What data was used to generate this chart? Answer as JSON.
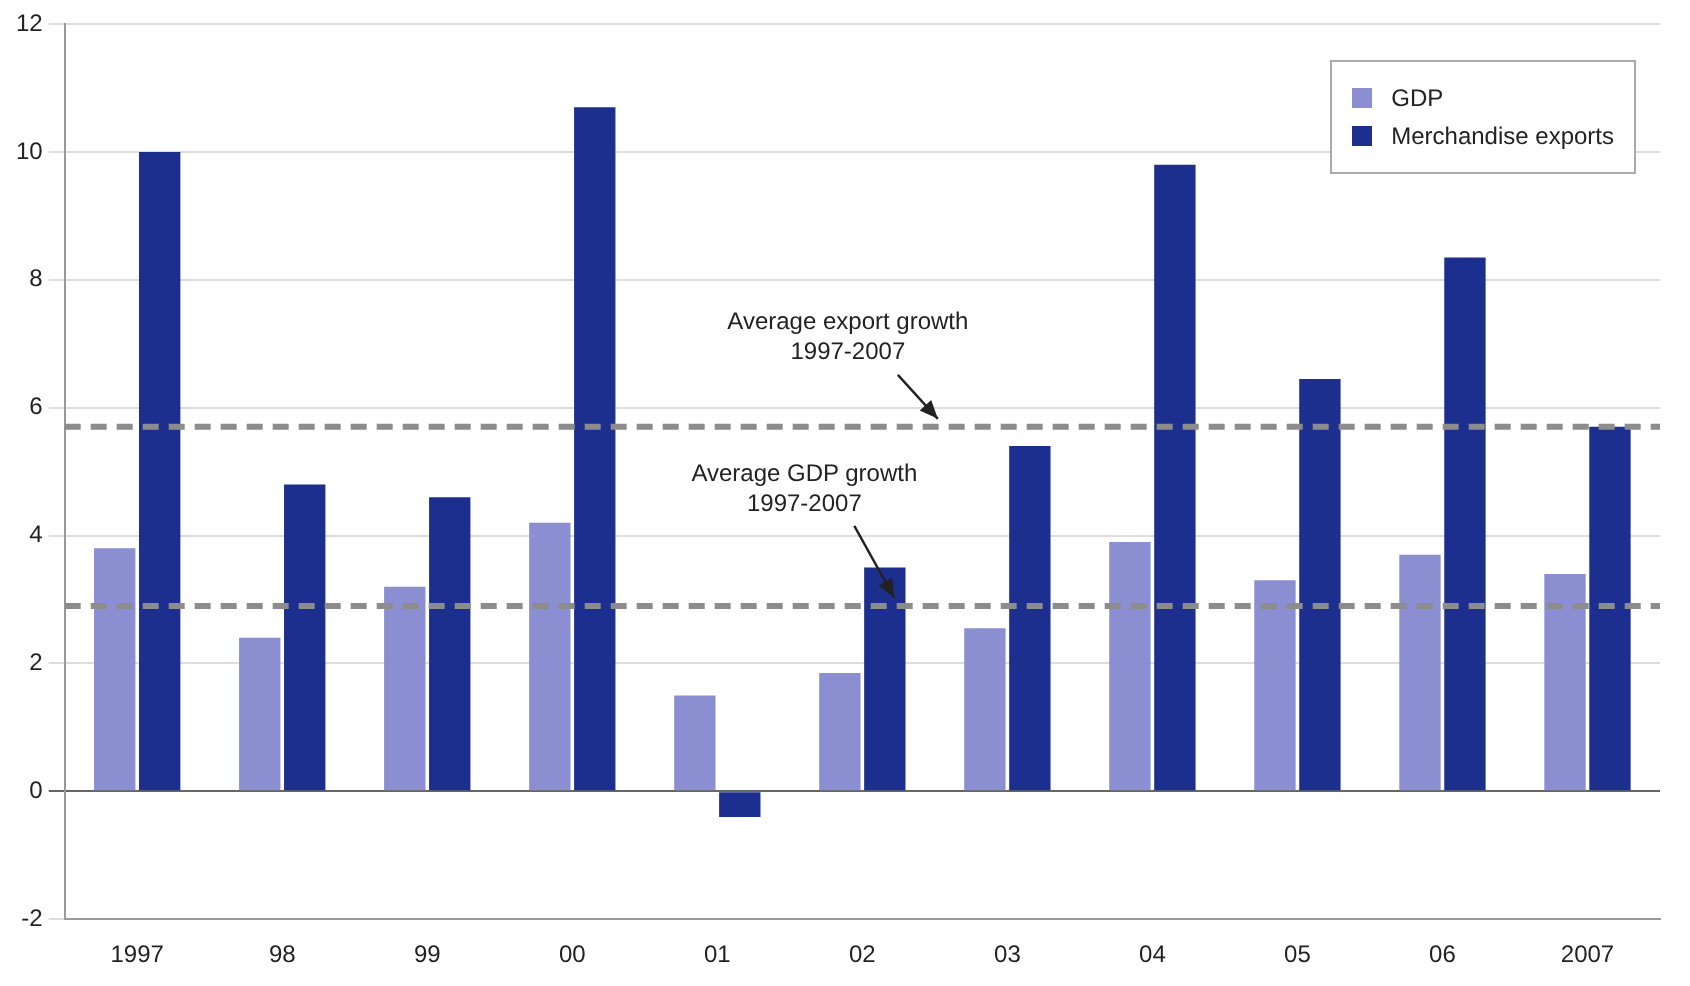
{
  "chart_data": {
    "type": "bar",
    "categories": [
      "1997",
      "98",
      "99",
      "00",
      "01",
      "02",
      "03",
      "04",
      "05",
      "06",
      "2007"
    ],
    "series": [
      {
        "name": "GDP",
        "color": "#8b8ed0",
        "values": [
          3.8,
          2.4,
          3.2,
          4.2,
          1.5,
          1.85,
          2.55,
          3.9,
          3.3,
          3.7,
          3.4
        ]
      },
      {
        "name": "Merchandise exports",
        "color": "#1c2f8e",
        "values": [
          10.0,
          4.8,
          4.6,
          10.7,
          -0.4,
          3.5,
          5.4,
          9.8,
          6.45,
          8.35,
          5.7
        ]
      }
    ],
    "ylim": [
      -2,
      12
    ],
    "yticks": [
      -2,
      0,
      2,
      4,
      6,
      8,
      10,
      12
    ],
    "grid": "y",
    "legend": "top right",
    "ref_lines": [
      {
        "axis": "y",
        "value": 5.7,
        "label": "Average export growth\n1997-2007",
        "color": "#8c8c8c",
        "line_style": "dashed"
      },
      {
        "axis": "y",
        "value": 2.9,
        "label": "Average GDP growth\n1997-2007",
        "color": "#8c8c8c",
        "line_style": "dashed"
      }
    ]
  }
}
